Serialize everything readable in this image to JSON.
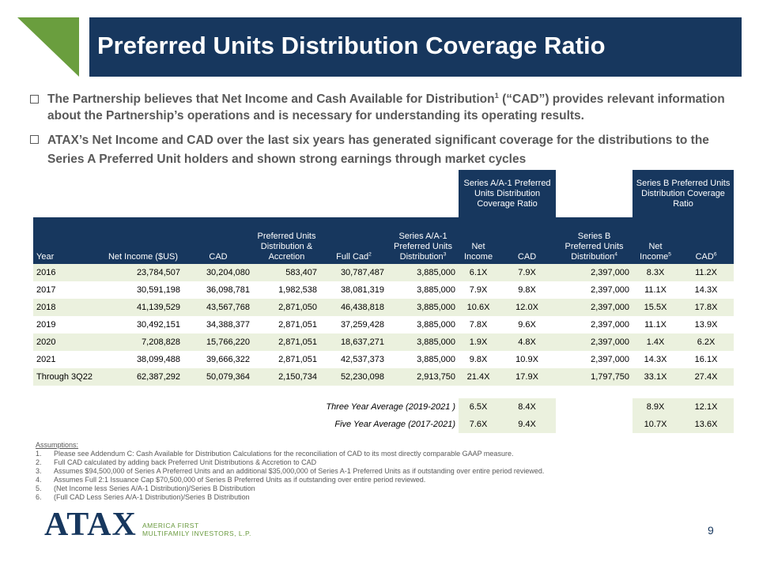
{
  "header": {
    "title": "Preferred Units Distribution Coverage Ratio"
  },
  "bullets": [
    {
      "parts": [
        "The Partnership believes that Net Income and Cash Available for Distribution",
        "1",
        " (“CAD”) provides relevant information about the Partnership’s operations and is necessary for understanding its operating results."
      ]
    },
    {
      "parts": [
        "ATAX’s Net Income and CAD over the last six years has generated significant coverage for the distributions to the Series A Preferred Unit holders and shown strong earnings through market cycles"
      ]
    }
  ],
  "table": {
    "groups": [
      "Series A/A-1 Preferred  Units Distribution Coverage Ratio",
      "Series B Preferred Units Distribution Coverage Ratio"
    ],
    "columns": [
      {
        "text": "Year"
      },
      {
        "text": "Net Income ($US)"
      },
      {
        "text": "CAD"
      },
      {
        "text": "Preferred Units Distribution & Accretion"
      },
      {
        "text": "Full Cad",
        "note": "2"
      },
      {
        "text": "Series A/A-1 Preferred Units Distribution",
        "note": "3"
      },
      {
        "text": "Net Income"
      },
      {
        "text": "CAD"
      },
      {
        "text": "Series B Preferred  Units Distribution",
        "note": "4"
      },
      {
        "text": "Net Income",
        "note": "5"
      },
      {
        "text": "CAD",
        "note": "6"
      }
    ],
    "rows": [
      [
        "2016",
        "23,784,507",
        "30,204,080",
        "583,407",
        "30,787,487",
        "3,885,000",
        "6.1X",
        "7.9X",
        "2,397,000",
        "8.3X",
        "11.2X"
      ],
      [
        "2017",
        "30,591,198",
        "36,098,781",
        "1,982,538",
        "38,081,319",
        "3,885,000",
        "7.9X",
        "9.8X",
        "2,397,000",
        "11.1X",
        "14.3X"
      ],
      [
        "2018",
        "41,139,529",
        "43,567,768",
        "2,871,050",
        "46,438,818",
        "3,885,000",
        "10.6X",
        "12.0X",
        "2,397,000",
        "15.5X",
        "17.8X"
      ],
      [
        "2019",
        "30,492,151",
        "34,388,377",
        "2,871,051",
        "37,259,428",
        "3,885,000",
        "7.8X",
        "9.6X",
        "2,397,000",
        "11.1X",
        "13.9X"
      ],
      [
        "2020",
        "7,208,828",
        "15,766,220",
        "2,871,051",
        "18,637,271",
        "3,885,000",
        "1.9X",
        "4.8X",
        "2,397,000",
        "1.4X",
        "6.2X"
      ],
      [
        "2021",
        "38,099,488",
        "39,666,322",
        "2,871,051",
        "42,537,373",
        "3,885,000",
        "9.8X",
        "10.9X",
        "2,397,000",
        "14.3X",
        "16.1X"
      ],
      [
        "Through 3Q22",
        "62,387,292",
        "50,079,364",
        "2,150,734",
        "52,230,098",
        "2,913,750",
        "21.4X",
        "17.9X",
        "1,797,750",
        "33.1X",
        "27.4X"
      ]
    ],
    "averages": [
      {
        "label": "Three Year Average (2019-2021 )",
        "values": [
          "6.5X",
          "8.4X",
          "8.9X",
          "12.1X"
        ]
      },
      {
        "label": "Five Year Average (2017-2021)",
        "values": [
          "7.6X",
          "9.4X",
          "10.7X",
          "13.6X"
        ]
      }
    ]
  },
  "assumptions": {
    "title": "Assumptions:",
    "items": [
      {
        "number": "1.",
        "text": "Please see Addendum C: Cash Available for Distribution Calculations for the reconciliation of CAD to its most directly comparable GAAP measure."
      },
      {
        "number": "2.",
        "text": "Full CAD calculated by adding back Preferred Unit Distributions & Accretion to CAD"
      },
      {
        "number": "3.",
        "text": "Assumes $94,500,000 of Series A Preferred Units and an additional $35,000,000 of Series A-1 Preferred Units as if outstanding over entire period reviewed."
      },
      {
        "number": "4.",
        "text": "Assumes Full 2:1 Issuance Cap $70,500,000 of Series B Preferred Units as if outstanding over entire period reviewed."
      },
      {
        "number": "5.",
        "text": "(Net Income less Series A/A-1 Distribution)/Series B Distribution"
      },
      {
        "number": "6.",
        "text": "(Full CAD Less Series A/A-1 Distribution)/Series B Distribution"
      }
    ]
  },
  "footer": {
    "logo": "ATAX",
    "company_line1": "AMERICA FIRST",
    "company_line2": "MULTIFAMILY INVESTORS, L.P.",
    "page_number": "9"
  }
}
